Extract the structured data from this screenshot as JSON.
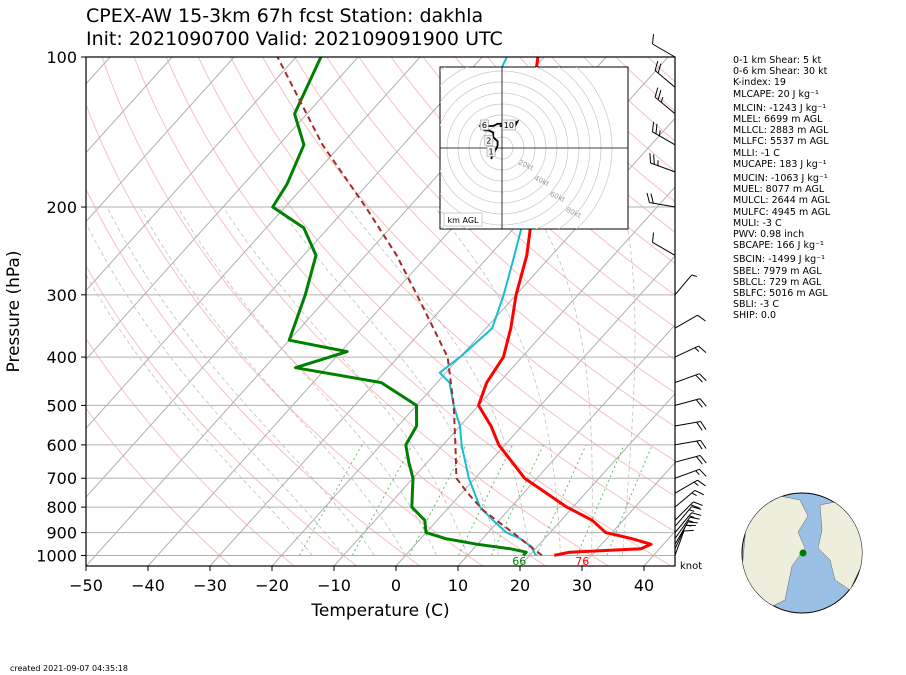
{
  "header": {
    "title_line1": "CPEX-AW 15-3km  67h fcst  Station: dakhla",
    "title_line2": "Init: 2021090700  Valid: 2021090919 00 UTC"
  },
  "footer": {
    "created": "created 2021-09-07 04:35:18"
  },
  "indices": [
    {
      "text": "0-1 km Shear: 5 kt",
      "gap": false
    },
    {
      "text": "0-6 km Shear: 30 kt",
      "gap": false
    },
    {
      "text": "K-index: 19",
      "gap": false
    },
    {
      "text": "MLCAPE: 20 J kg⁻¹",
      "gap": false
    },
    {
      "text": "MLCIN: -1243 J kg⁻¹",
      "gap": true
    },
    {
      "text": "MLEL: 6699 m AGL",
      "gap": false
    },
    {
      "text": "MLLCL: 2883 m AGL",
      "gap": false
    },
    {
      "text": "MLLFC: 5537 m AGL",
      "gap": false
    },
    {
      "text": "MLLI: -1 C",
      "gap": false
    },
    {
      "text": "MUCAPE: 183 J kg⁻¹",
      "gap": false
    },
    {
      "text": "MUCIN: -1063 J kg⁻¹",
      "gap": true
    },
    {
      "text": "MUEL: 8077 m AGL",
      "gap": false
    },
    {
      "text": "MULCL: 2644 m AGL",
      "gap": false
    },
    {
      "text": "MULFC: 4945 m AGL",
      "gap": false
    },
    {
      "text": "MULI: -3 C",
      "gap": false
    },
    {
      "text": "PWV: 0.98 inch",
      "gap": false
    },
    {
      "text": "SBCAPE: 166 J kg⁻¹",
      "gap": false
    },
    {
      "text": "SBCIN: -1499 J kg⁻¹",
      "gap": true
    },
    {
      "text": "SBEL: 7979 m AGL",
      "gap": false
    },
    {
      "text": "SBLCL: 729 m AGL",
      "gap": false
    },
    {
      "text": "SBLFC: 5016 m AGL",
      "gap": false
    },
    {
      "text": "SBLI: -3 C",
      "gap": false
    },
    {
      "text": "SHIP: 0.0",
      "gap": false
    }
  ],
  "chart_data": {
    "type": "line",
    "subtype": "skew-T log-p sounding",
    "xlabel": "Temperature (C)",
    "ylabel": "Pressure (hPa)",
    "xlim": [
      -50,
      45
    ],
    "ylim": [
      1050,
      100
    ],
    "y_scale": "log",
    "x_ticks": [
      -50,
      -40,
      -30,
      -20,
      -10,
      0,
      10,
      20,
      30,
      40
    ],
    "y_ticks": [
      1000,
      900,
      800,
      700,
      600,
      500,
      400,
      300,
      200,
      100
    ],
    "colors": {
      "temperature": "#ff0000",
      "dewpoint": "#008000",
      "wetbulb": "#17becf",
      "parcel": "#a52a2a",
      "isobar": "#b0b0b0",
      "isotherm": "#b0b0b0",
      "dry_adiabat": "#f4a6a6",
      "mixing_ratio": "#2ca02c"
    },
    "series": [
      {
        "key": "temperature",
        "points": [
          [
            1000,
            24
          ],
          [
            985,
            26
          ],
          [
            970,
            37
          ],
          [
            950,
            38
          ],
          [
            925,
            34
          ],
          [
            900,
            29
          ],
          [
            850,
            25
          ],
          [
            800,
            19
          ],
          [
            700,
            8
          ],
          [
            600,
            -1
          ],
          [
            550,
            -5
          ],
          [
            500,
            -10
          ],
          [
            450,
            -12
          ],
          [
            400,
            -13
          ],
          [
            350,
            -16
          ],
          [
            300,
            -20
          ],
          [
            250,
            -24
          ],
          [
            200,
            -30
          ],
          [
            150,
            -39
          ],
          [
            130,
            -44
          ],
          [
            100,
            -51
          ]
        ]
      },
      {
        "key": "dewpoint",
        "points": [
          [
            1000,
            19
          ],
          [
            985,
            19
          ],
          [
            970,
            16
          ],
          [
            950,
            10
          ],
          [
            925,
            4
          ],
          [
            900,
            0
          ],
          [
            850,
            -2
          ],
          [
            800,
            -6
          ],
          [
            700,
            -10
          ],
          [
            650,
            -13
          ],
          [
            600,
            -16
          ],
          [
            550,
            -17
          ],
          [
            500,
            -20
          ],
          [
            450,
            -29
          ],
          [
            420,
            -45
          ],
          [
            390,
            -39
          ],
          [
            370,
            -50
          ],
          [
            300,
            -54
          ],
          [
            250,
            -58
          ],
          [
            220,
            -64
          ],
          [
            200,
            -72
          ],
          [
            180,
            -73
          ],
          [
            150,
            -76
          ],
          [
            130,
            -82
          ],
          [
            100,
            -86
          ]
        ]
      },
      {
        "key": "wetbulb",
        "points": [
          [
            1000,
            21
          ],
          [
            960,
            19
          ],
          [
            925,
            16
          ],
          [
            900,
            13
          ],
          [
            850,
            9
          ],
          [
            800,
            5
          ],
          [
            700,
            -1
          ],
          [
            600,
            -7
          ],
          [
            550,
            -10
          ],
          [
            500,
            -14
          ],
          [
            450,
            -18
          ],
          [
            430,
            -21
          ],
          [
            400,
            -20
          ],
          [
            350,
            -19
          ],
          [
            300,
            -22
          ],
          [
            250,
            -26
          ],
          [
            200,
            -31
          ],
          [
            170,
            -37
          ],
          [
            150,
            -42
          ],
          [
            130,
            -51
          ],
          [
            115,
            -54
          ],
          [
            100,
            -56
          ]
        ]
      },
      {
        "key": "parcel",
        "points": [
          [
            1000,
            22
          ],
          [
            900,
            14
          ],
          [
            812,
            6
          ],
          [
            750,
            1
          ],
          [
            700,
            -3
          ],
          [
            600,
            -8
          ],
          [
            500,
            -14
          ],
          [
            400,
            -22
          ],
          [
            300,
            -36
          ],
          [
            250,
            -45
          ],
          [
            200,
            -57
          ],
          [
            150,
            -73
          ],
          [
            100,
            -93
          ]
        ]
      }
    ],
    "surface_labels": {
      "dewpoint": "66",
      "temperature": "76"
    },
    "wind_units": "knot",
    "wind_profile": [
      {
        "p": 1000,
        "spd": 10,
        "dir": 20
      },
      {
        "p": 970,
        "spd": 10,
        "dir": 25
      },
      {
        "p": 950,
        "spd": 15,
        "dir": 30
      },
      {
        "p": 925,
        "spd": 15,
        "dir": 35
      },
      {
        "p": 900,
        "spd": 15,
        "dir": 40
      },
      {
        "p": 875,
        "spd": 15,
        "dir": 40
      },
      {
        "p": 850,
        "spd": 20,
        "dir": 45
      },
      {
        "p": 800,
        "spd": 15,
        "dir": 50
      },
      {
        "p": 750,
        "spd": 15,
        "dir": 60
      },
      {
        "p": 700,
        "spd": 15,
        "dir": 70
      },
      {
        "p": 650,
        "spd": 20,
        "dir": 75
      },
      {
        "p": 600,
        "spd": 20,
        "dir": 80
      },
      {
        "p": 550,
        "spd": 20,
        "dir": 80
      },
      {
        "p": 500,
        "spd": 20,
        "dir": 75
      },
      {
        "p": 450,
        "spd": 20,
        "dir": 70
      },
      {
        "p": 400,
        "spd": 15,
        "dir": 65
      },
      {
        "p": 350,
        "spd": 10,
        "dir": 60
      },
      {
        "p": 300,
        "spd": 5,
        "dir": 40
      },
      {
        "p": 250,
        "spd": 10,
        "dir": 300
      },
      {
        "p": 200,
        "spd": 20,
        "dir": 280
      },
      {
        "p": 170,
        "spd": 25,
        "dir": 290
      },
      {
        "p": 150,
        "spd": 25,
        "dir": 300
      },
      {
        "p": 130,
        "spd": 25,
        "dir": 310
      },
      {
        "p": 115,
        "spd": 20,
        "dir": 310
      },
      {
        "p": 100,
        "spd": 10,
        "dir": 300
      }
    ],
    "hodograph": {
      "title": "km AGL",
      "rings_kt": [
        20,
        40,
        60,
        80
      ],
      "ring_labels": [
        "20kt",
        "40kt",
        "60kt",
        "80kt"
      ],
      "height_labels": [
        "1",
        "2",
        "6",
        "10"
      ],
      "trace_kt": [
        [
          -5,
          -5
        ],
        [
          -4,
          -3
        ],
        [
          -3,
          -1
        ],
        [
          -2,
          1
        ],
        [
          -2,
          3
        ],
        [
          -3,
          4
        ],
        [
          -4,
          5
        ],
        [
          -4,
          7
        ],
        [
          -6,
          8
        ],
        [
          -8,
          8
        ],
        [
          -9,
          9
        ],
        [
          -10,
          10
        ],
        [
          -9,
          11
        ],
        [
          -7,
          10
        ],
        [
          -4,
          10
        ],
        [
          -2,
          11
        ],
        [
          2,
          11
        ],
        [
          6,
          10
        ],
        [
          7,
          12
        ],
        [
          5,
          11
        ],
        [
          2,
          10
        ],
        [
          -1,
          10
        ]
      ],
      "label_points_kt": {
        "1": [
          -5,
          -2
        ],
        "2": [
          -6,
          3
        ],
        "6": [
          -8,
          10
        ],
        "10": [
          2,
          10
        ]
      }
    },
    "globe": {
      "station_lat": 23.7,
      "station_lon": -15.9
    }
  }
}
